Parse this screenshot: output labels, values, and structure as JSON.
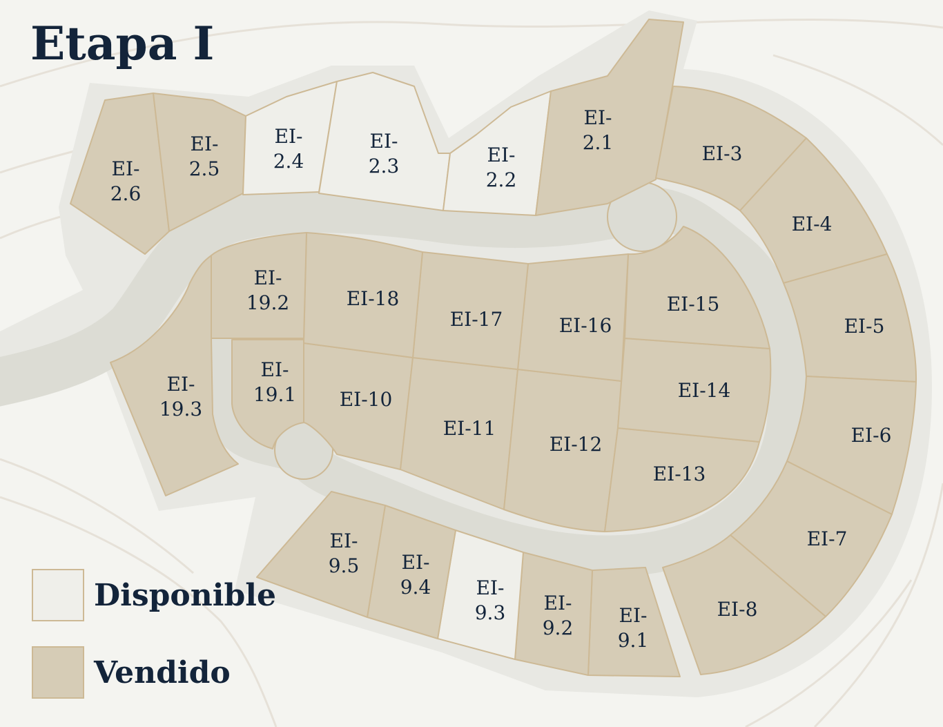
{
  "title": "Etapa I",
  "legend": [
    {
      "key": "avail",
      "label": "Disponible"
    },
    {
      "key": "sold",
      "label": "Vendido"
    }
  ],
  "colors": {
    "available": "#efefea",
    "sold": "#d6ccb6",
    "border": "#cdb995",
    "road": "#dcdcd4",
    "text": "#13243a"
  },
  "lots": [
    {
      "id": "EI-2.6",
      "status": "sold",
      "label": [
        "EI-",
        "2.6"
      ]
    },
    {
      "id": "EI-2.5",
      "status": "sold",
      "label": [
        "EI-",
        "2.5"
      ]
    },
    {
      "id": "EI-2.4",
      "status": "avail",
      "label": [
        "EI-",
        "2.4"
      ]
    },
    {
      "id": "EI-2.3",
      "status": "avail",
      "label": [
        "EI-",
        "2.3"
      ]
    },
    {
      "id": "EI-2.2",
      "status": "avail",
      "label": [
        "EI-",
        "2.2"
      ]
    },
    {
      "id": "EI-2.1",
      "status": "sold",
      "label": [
        "EI-",
        "2.1"
      ]
    },
    {
      "id": "EI-3",
      "status": "sold",
      "label": [
        "EI-3"
      ]
    },
    {
      "id": "EI-4",
      "status": "sold",
      "label": [
        "EI-4"
      ]
    },
    {
      "id": "EI-5",
      "status": "sold",
      "label": [
        "EI-5"
      ]
    },
    {
      "id": "EI-6",
      "status": "sold",
      "label": [
        "EI-6"
      ]
    },
    {
      "id": "EI-7",
      "status": "sold",
      "label": [
        "EI-7"
      ]
    },
    {
      "id": "EI-8",
      "status": "sold",
      "label": [
        "EI-8"
      ]
    },
    {
      "id": "EI-9.1",
      "status": "sold",
      "label": [
        "EI-",
        "9.1"
      ]
    },
    {
      "id": "EI-9.2",
      "status": "sold",
      "label": [
        "EI-",
        "9.2"
      ]
    },
    {
      "id": "EI-9.3",
      "status": "avail",
      "label": [
        "EI-",
        "9.3"
      ]
    },
    {
      "id": "EI-9.4",
      "status": "sold",
      "label": [
        "EI-",
        "9.4"
      ]
    },
    {
      "id": "EI-9.5",
      "status": "sold",
      "label": [
        "EI-",
        "9.5"
      ]
    },
    {
      "id": "EI-10",
      "status": "sold",
      "label": [
        "EI-10"
      ]
    },
    {
      "id": "EI-11",
      "status": "sold",
      "label": [
        "EI-11"
      ]
    },
    {
      "id": "EI-12",
      "status": "sold",
      "label": [
        "EI-12"
      ]
    },
    {
      "id": "EI-13",
      "status": "sold",
      "label": [
        "EI-13"
      ]
    },
    {
      "id": "EI-14",
      "status": "sold",
      "label": [
        "EI-14"
      ]
    },
    {
      "id": "EI-15",
      "status": "sold",
      "label": [
        "EI-15"
      ]
    },
    {
      "id": "EI-16",
      "status": "sold",
      "label": [
        "EI-16"
      ]
    },
    {
      "id": "EI-17",
      "status": "sold",
      "label": [
        "EI-17"
      ]
    },
    {
      "id": "EI-18",
      "status": "sold",
      "label": [
        "EI-18"
      ]
    },
    {
      "id": "EI-19.1",
      "status": "sold",
      "label": [
        "EI-",
        "19.1"
      ]
    },
    {
      "id": "EI-19.2",
      "status": "sold",
      "label": [
        "EI-",
        "19.2"
      ]
    },
    {
      "id": "EI-19.3",
      "status": "sold",
      "label": [
        "EI-",
        "19.3"
      ]
    }
  ]
}
